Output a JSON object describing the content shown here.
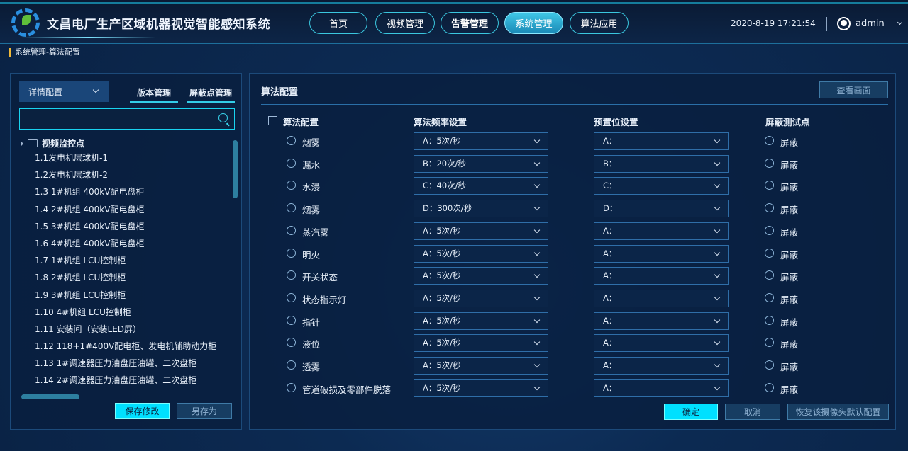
{
  "header": {
    "title": "文昌电厂生产区域机器视觉智能感知系统",
    "nav": [
      {
        "label": "首页"
      },
      {
        "label": "视频管理"
      },
      {
        "label": "告警管理"
      },
      {
        "label": "系统管理"
      },
      {
        "label": "算法应用"
      }
    ],
    "active_nav": "系统管理",
    "datetime": "2020-8-19  17:21:54",
    "user": "admin"
  },
  "breadcrumb": "系统管理-算法配置",
  "left": {
    "select": "详情配置",
    "tabs": [
      "版本管理",
      "屏蔽点管理"
    ],
    "search": {
      "value": "",
      "placeholder": ""
    },
    "tree_root": "视频监控点",
    "items": [
      "1.1发电机层球机-1",
      "1.2发电机层球机-2",
      "1.3 1#机组 400kV配电盘柜",
      "1.4 2#机组 400kV配电盘柜",
      "1.5 3#机组 400kV配电盘柜",
      "1.6 4#机组 400kV配电盘柜",
      "1.7 1#机组 LCU控制柜",
      "1.8 2#机组 LCU控制柜",
      "1.9 3#机组 LCU控制柜",
      "1.10 4#机组 LCU控制柜",
      "1.11 安装间（安装LED屏）",
      "1.12 118+1#400V配电柜、发电机辅助动力柜",
      "1.13 1#调速器压力油盘压油罐、二次盘柜",
      "1.14 2#调速器压力油盘压油罐、二次盘柜"
    ],
    "save": "保存修改",
    "save_as": "另存为"
  },
  "right": {
    "title": "算法配置",
    "view": "查看画面",
    "columns": [
      "算法配置",
      "算法频率设置",
      "预置位设置",
      "屏蔽测试点"
    ],
    "rows": [
      {
        "name": "烟雾",
        "freq": "A：5次/秒",
        "preset": "A：",
        "mask": "屏蔽"
      },
      {
        "name": "漏水",
        "freq": "B：20次/秒",
        "preset": "B：",
        "mask": "屏蔽"
      },
      {
        "name": "水浸",
        "freq": "C：40次/秒",
        "preset": "C：",
        "mask": "屏蔽"
      },
      {
        "name": "烟雾",
        "freq": "D：300次/秒",
        "preset": "D：",
        "mask": "屏蔽"
      },
      {
        "name": "蒸汽雾",
        "freq": "A：5次/秒",
        "preset": "A：",
        "mask": "屏蔽"
      },
      {
        "name": "明火",
        "freq": "A：5次/秒",
        "preset": "A：",
        "mask": "屏蔽"
      },
      {
        "name": "开关状态",
        "freq": "A：5次/秒",
        "preset": "A：",
        "mask": "屏蔽"
      },
      {
        "name": "状态指示灯",
        "freq": "A：5次/秒",
        "preset": "A：",
        "mask": "屏蔽"
      },
      {
        "name": "指针",
        "freq": "A：5次/秒",
        "preset": "A：",
        "mask": "屏蔽"
      },
      {
        "name": "液位",
        "freq": "A：5次/秒",
        "preset": "A：",
        "mask": "屏蔽"
      },
      {
        "name": "透雾",
        "freq": "A：5次/秒",
        "preset": "A：",
        "mask": "屏蔽"
      },
      {
        "name": "管道破损及零部件脱落",
        "freq": "A：5次/秒",
        "preset": "A：",
        "mask": "屏蔽"
      }
    ],
    "ok": "确定",
    "cancel": "取消",
    "restore": "恢复该摄像头默认配置"
  },
  "colors": {
    "accent": "#00e0ff",
    "nav_active": "#3fc7e6",
    "breadcrumb_marker": "#f0b93a"
  }
}
